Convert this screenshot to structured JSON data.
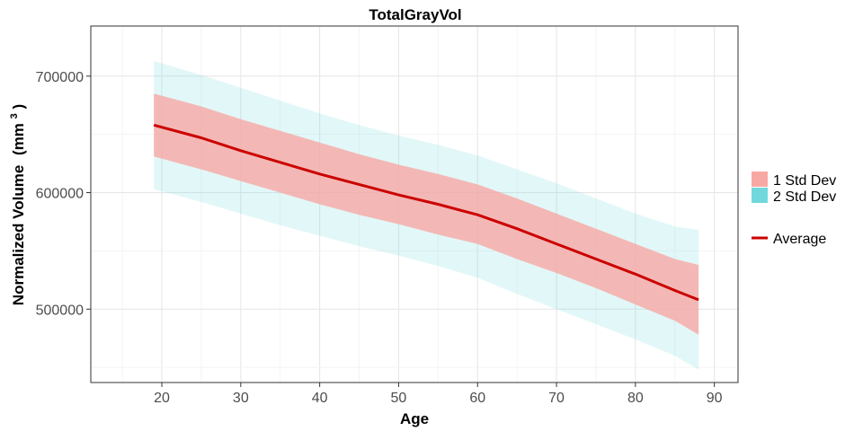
{
  "chart_data": {
    "type": "area",
    "title": "TotalGrayVol",
    "xlabel": "Age",
    "ylabel": "Normalized Volume",
    "ylabel_unit": "(mm",
    "ylabel_unit_exp": "3",
    "ylabel_unit_close": ")",
    "xlim": [
      11,
      93
    ],
    "ylim": [
      437000,
      743000
    ],
    "xticks": [
      20,
      30,
      40,
      50,
      60,
      70,
      80,
      90
    ],
    "yticks": [
      500000,
      600000,
      700000
    ],
    "grid": true,
    "legend_position": "right",
    "x": [
      19,
      25,
      30,
      35,
      40,
      45,
      50,
      55,
      60,
      65,
      70,
      75,
      80,
      85,
      88
    ],
    "series": [
      {
        "name": "Average",
        "color": "#cc0000",
        "values": [
          658000,
          647000,
          636000,
          626000,
          616000,
          607000,
          598000,
          590000,
          581000,
          569000,
          556000,
          543000,
          530000,
          516000,
          508000
        ]
      },
      {
        "name": "1 Std Dev",
        "color": "#f8a8a4",
        "upper": [
          685000,
          674000,
          663000,
          653000,
          643000,
          633000,
          624000,
          616000,
          607000,
          595000,
          582000,
          569000,
          556000,
          543000,
          538000
        ],
        "lower": [
          631000,
          620000,
          610000,
          600000,
          590000,
          581000,
          573000,
          564000,
          556000,
          543000,
          531000,
          518000,
          504000,
          490000,
          478000
        ]
      },
      {
        "name": "2 Std Dev",
        "color": "#70d8dc",
        "upper": [
          713000,
          701000,
          690000,
          679000,
          668000,
          658000,
          649000,
          641000,
          632000,
          620000,
          608000,
          595000,
          582000,
          571000,
          568000
        ],
        "lower": [
          603000,
          592000,
          582000,
          572000,
          563000,
          554000,
          546000,
          537000,
          527000,
          513000,
          500000,
          487000,
          474000,
          460000,
          448000
        ]
      }
    ]
  }
}
